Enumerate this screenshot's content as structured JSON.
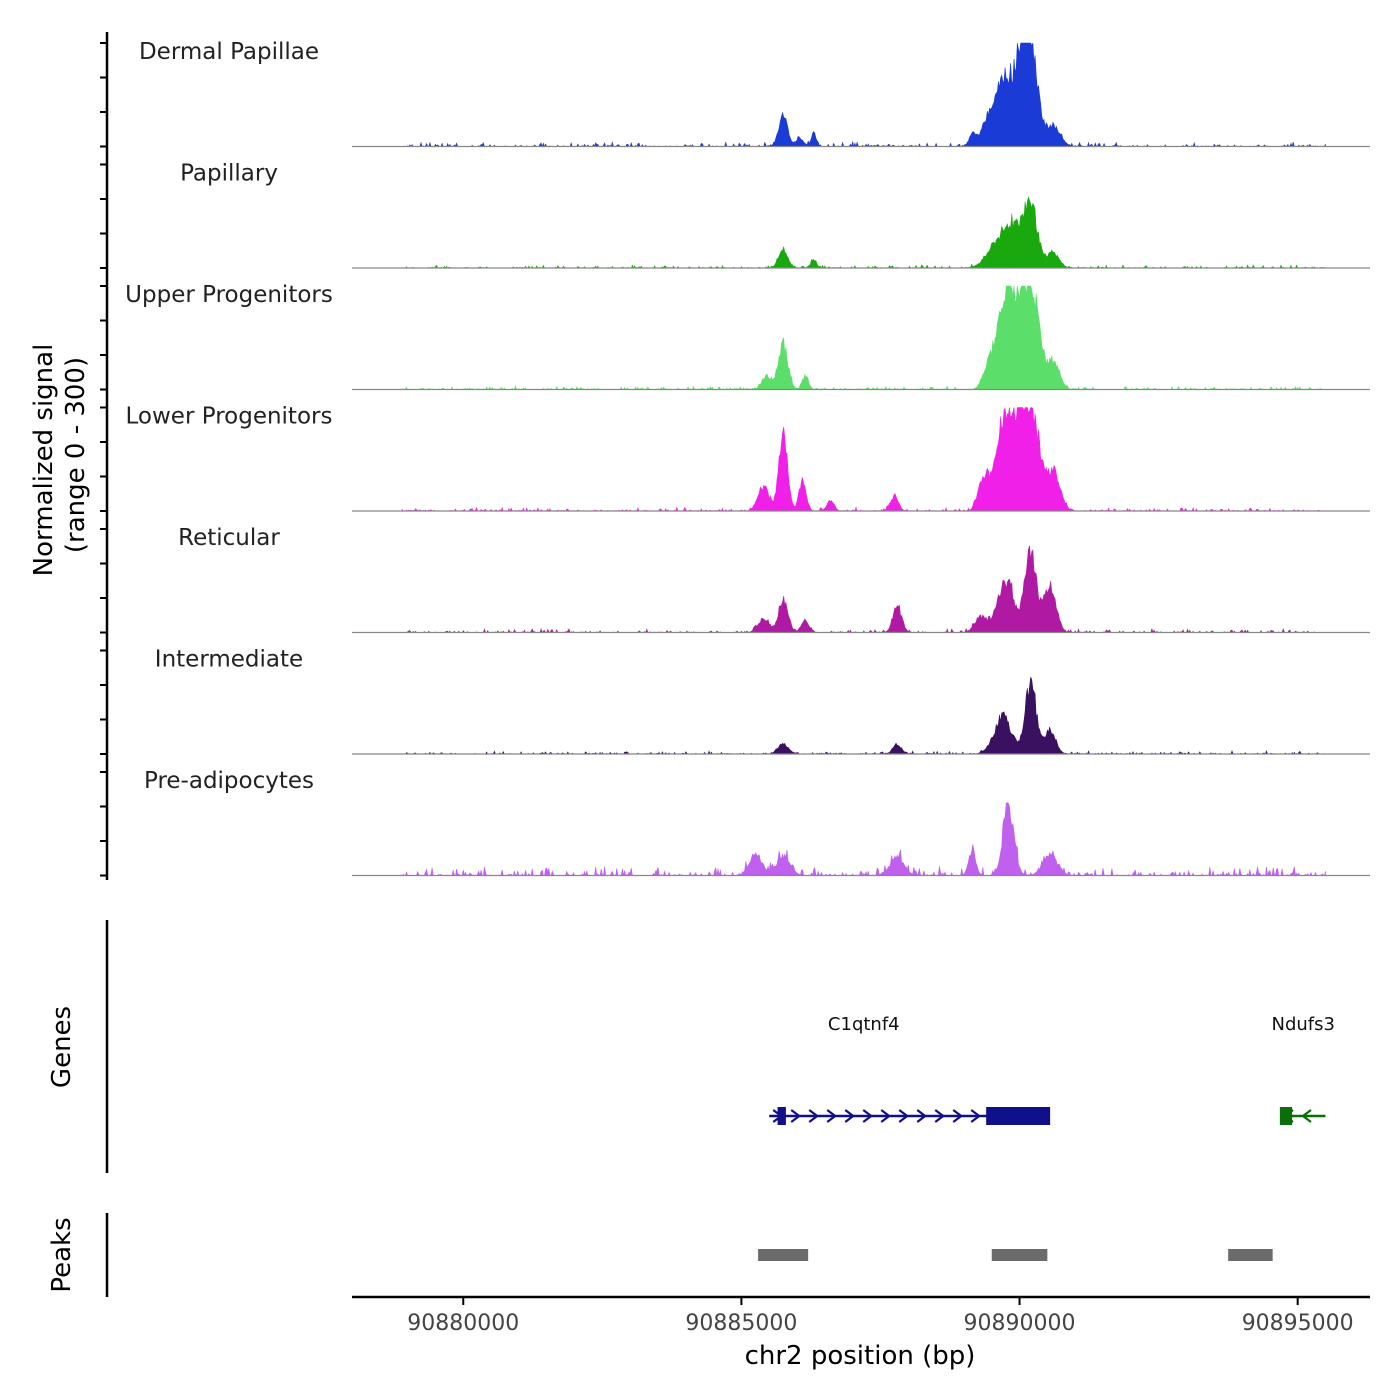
{
  "chart_data": {
    "type": "area",
    "title": "",
    "ylabel_line1": "Normalized signal",
    "ylabel_line2": "(range 0 - 300)",
    "xlabel": "chr2 position (bp)",
    "x_range": [
      90878000,
      90896300
    ],
    "y_range": [
      0,
      300
    ],
    "x_ticks": [
      90880000,
      90885000,
      90890000,
      90895000
    ],
    "x_tick_labels": [
      "90880000",
      "90885000",
      "90890000",
      "90895000"
    ],
    "signal_start": 90878900,
    "signal_end": 90895500,
    "tracks": [
      {
        "name": "Dermal Papillae",
        "color": "#1a3bd6",
        "peaks": [
          [
            90885750,
            95,
            110
          ],
          [
            90886300,
            45,
            60
          ],
          [
            90886050,
            25,
            100
          ],
          [
            90889150,
            38,
            80
          ],
          [
            90889400,
            55,
            150
          ],
          [
            90889750,
            205,
            260
          ],
          [
            90890050,
            175,
            150
          ],
          [
            90890200,
            265,
            180
          ],
          [
            90890600,
            60,
            180
          ]
        ],
        "noise": 14,
        "seed": 3
      },
      {
        "name": "Papillary",
        "color": "#1aa80f",
        "peaks": [
          [
            90885750,
            55,
            110
          ],
          [
            90886300,
            25,
            70
          ],
          [
            90889600,
            70,
            260
          ],
          [
            90889900,
            110,
            220
          ],
          [
            90890200,
            185,
            170
          ],
          [
            90890600,
            45,
            150
          ]
        ],
        "noise": 10,
        "seed": 7
      },
      {
        "name": "Upper Progenitors",
        "color": "#5cdf6a",
        "peaks": [
          [
            90885450,
            40,
            120
          ],
          [
            90885750,
            135,
            120
          ],
          [
            90886150,
            40,
            80
          ],
          [
            90889400,
            40,
            120
          ],
          [
            90889750,
            300,
            230
          ],
          [
            90890050,
            210,
            160
          ],
          [
            90890250,
            255,
            170
          ],
          [
            90890600,
            80,
            160
          ]
        ],
        "noise": 10,
        "seed": 11
      },
      {
        "name": "Lower Progenitors",
        "color": "#f020e8",
        "peaks": [
          [
            90885400,
            70,
            140
          ],
          [
            90885750,
            225,
            110
          ],
          [
            90886100,
            90,
            90
          ],
          [
            90886600,
            30,
            90
          ],
          [
            90887750,
            45,
            100
          ],
          [
            90889350,
            90,
            130
          ],
          [
            90889750,
            300,
            240
          ],
          [
            90890050,
            220,
            160
          ],
          [
            90890250,
            250,
            170
          ],
          [
            90890600,
            120,
            170
          ]
        ],
        "noise": 12,
        "seed": 5
      },
      {
        "name": "Reticular",
        "color": "#b01aa3",
        "peaks": [
          [
            90885400,
            40,
            140
          ],
          [
            90885750,
            95,
            120
          ],
          [
            90886150,
            35,
            100
          ],
          [
            90887800,
            80,
            110
          ],
          [
            90889300,
            45,
            150
          ],
          [
            90889750,
            155,
            210
          ],
          [
            90890200,
            240,
            150
          ],
          [
            90890550,
            140,
            150
          ]
        ],
        "noise": 12,
        "seed": 9
      },
      {
        "name": "Intermediate",
        "color": "#3a1060",
        "peaks": [
          [
            90885750,
            30,
            130
          ],
          [
            90887800,
            25,
            110
          ],
          [
            90889700,
            110,
            220
          ],
          [
            90890200,
            210,
            140
          ],
          [
            90890550,
            70,
            140
          ]
        ],
        "noise": 9,
        "seed": 13
      },
      {
        "name": "Pre-adipocytes",
        "color": "#c060ee",
        "peaks": [
          [
            90885250,
            60,
            160
          ],
          [
            90885750,
            50,
            180
          ],
          [
            90887800,
            55,
            180
          ],
          [
            90889150,
            75,
            90
          ],
          [
            90889800,
            205,
            140
          ],
          [
            90890550,
            60,
            180
          ]
        ],
        "noise": 30,
        "seed": 17
      }
    ],
    "genes_label": "Genes",
    "genes": [
      {
        "name": "C1qtnf4",
        "start": 90885500,
        "end": 90890500,
        "strand": "+",
        "color": "#10108a",
        "exons": [
          [
            90885650,
            90885800
          ],
          [
            90889400,
            90890550
          ]
        ]
      },
      {
        "name": "Ndufs3",
        "start": 90894700,
        "end": 90895500,
        "strand": "-",
        "color": "#0a6e0a",
        "exons": [
          [
            90894680,
            90894900
          ]
        ]
      }
    ],
    "peaks_label": "Peaks",
    "peak_regions": [
      [
        90885300,
        90886200
      ],
      [
        90889500,
        90890500
      ],
      [
        90893750,
        90894550
      ]
    ]
  }
}
